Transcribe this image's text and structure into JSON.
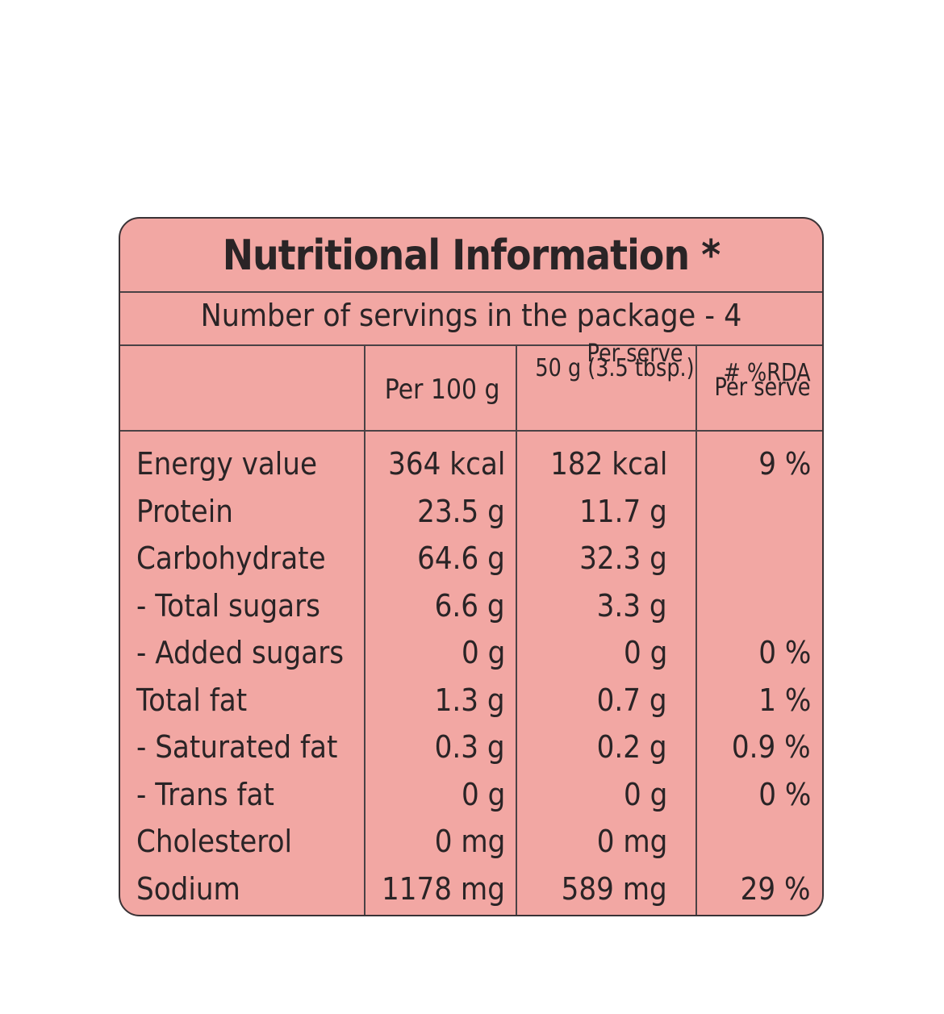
{
  "label": {
    "title": "Nutritional Information *",
    "servings": "Number of servings in the package - 4",
    "headers": {
      "per_100g": "Per 100 g",
      "per_serve_top": "Per serve",
      "per_serve_sub": "50 g (3.5 tbsp.)",
      "rda_top": "# %RDA",
      "rda_sub": "Per serve"
    },
    "rows": [
      {
        "name": "Energy value",
        "per_100g": "364 kcal",
        "per_serve": "182 kcal",
        "rda": "9 %"
      },
      {
        "name": "Protein",
        "per_100g": "23.5 g",
        "per_serve": "11.7 g",
        "rda": ""
      },
      {
        "name": "Carbohydrate",
        "per_100g": "64.6 g",
        "per_serve": "32.3 g",
        "rda": ""
      },
      {
        "name": "- Total sugars",
        "per_100g": "6.6 g",
        "per_serve": "3.3 g",
        "rda": ""
      },
      {
        "name": "- Added sugars",
        "per_100g": "0 g",
        "per_serve": "0 g",
        "rda": "0 %"
      },
      {
        "name": "Total fat",
        "per_100g": "1.3 g",
        "per_serve": "0.7 g",
        "rda": "1 %"
      },
      {
        "name": "- Saturated fat",
        "per_100g": "0.3 g",
        "per_serve": "0.2 g",
        "rda": "0.9 %"
      },
      {
        "name": "- Trans fat",
        "per_100g": "0 g",
        "per_serve": "0 g",
        "rda": "0 %"
      },
      {
        "name": "Cholesterol",
        "per_100g": "0 mg",
        "per_serve": "0 mg",
        "rda": ""
      },
      {
        "name": "Sodium",
        "per_100g": "1178 mg",
        "per_serve": "589 mg",
        "rda": "29 %"
      }
    ]
  },
  "colors": {
    "panel_bg": "#f2a7a3",
    "ink": "#2a2426"
  }
}
